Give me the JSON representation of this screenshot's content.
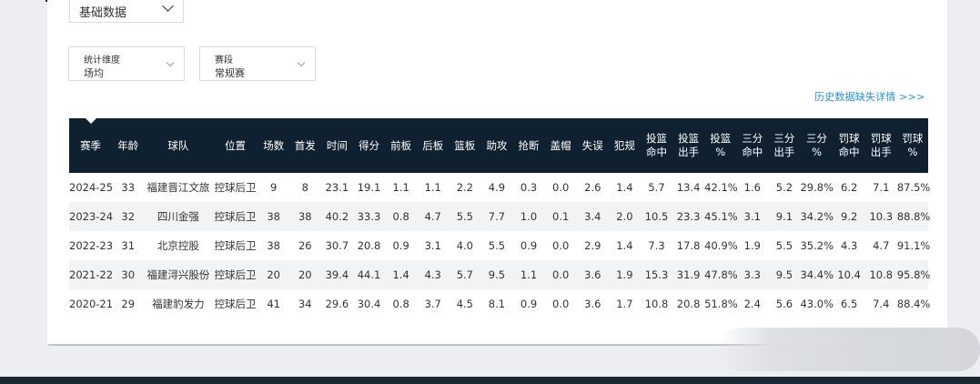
{
  "filters": {
    "category": "基础数据",
    "stat_dimension": {
      "label": "统计维度",
      "value": "场均"
    },
    "season_type": {
      "label": "赛段",
      "value": "常规赛"
    }
  },
  "history_link": "历史数据缺失详情 >>>",
  "table": {
    "headers": [
      "赛季",
      "年龄",
      "球队",
      "位置",
      "场数",
      "首发",
      "时间",
      "得分",
      "前板",
      "后板",
      "篮板",
      "助攻",
      "抢断",
      "盖帽",
      "失误",
      "犯规",
      "投篮\n命中",
      "投篮\n出手",
      "投篮\n%",
      "三分\n命中",
      "三分\n出手",
      "三分\n%",
      "罚球\n命中",
      "罚球\n出手",
      "罚球\n%"
    ],
    "rows": [
      [
        "2024-25",
        "33",
        "福建晋江文旅",
        "控球后卫",
        "9",
        "8",
        "23.1",
        "19.1",
        "1.1",
        "1.1",
        "2.2",
        "4.9",
        "0.3",
        "0.0",
        "2.6",
        "1.4",
        "5.7",
        "13.4",
        "42.1%",
        "1.6",
        "5.2",
        "29.8%",
        "6.2",
        "7.1",
        "87.5%"
      ],
      [
        "2023-24",
        "32",
        "四川金强",
        "控球后卫",
        "38",
        "38",
        "40.2",
        "33.3",
        "0.8",
        "4.7",
        "5.5",
        "7.7",
        "1.0",
        "0.1",
        "3.4",
        "2.0",
        "10.5",
        "23.3",
        "45.1%",
        "3.1",
        "9.1",
        "34.2%",
        "9.2",
        "10.3",
        "88.8%"
      ],
      [
        "2022-23",
        "31",
        "北京控股",
        "控球后卫",
        "38",
        "26",
        "30.7",
        "20.8",
        "0.9",
        "3.1",
        "4.0",
        "5.5",
        "0.9",
        "0.0",
        "2.9",
        "1.4",
        "7.3",
        "17.8",
        "40.9%",
        "1.9",
        "5.5",
        "35.2%",
        "4.3",
        "4.7",
        "91.1%"
      ],
      [
        "2021-22",
        "30",
        "福建浔兴股份",
        "控球后卫",
        "20",
        "20",
        "39.4",
        "44.1",
        "1.4",
        "4.3",
        "5.7",
        "9.5",
        "1.1",
        "0.0",
        "3.6",
        "1.9",
        "15.3",
        "31.9",
        "47.8%",
        "3.3",
        "9.5",
        "34.4%",
        "10.4",
        "10.8",
        "95.8%"
      ],
      [
        "2020-21",
        "29",
        "福建豹发力",
        "控球后卫",
        "41",
        "34",
        "29.6",
        "30.4",
        "0.8",
        "3.7",
        "4.5",
        "8.1",
        "0.9",
        "0.0",
        "3.6",
        "1.7",
        "10.8",
        "20.8",
        "51.8%",
        "2.4",
        "5.6",
        "43.0%",
        "6.5",
        "7.4",
        "88.4%"
      ]
    ]
  }
}
